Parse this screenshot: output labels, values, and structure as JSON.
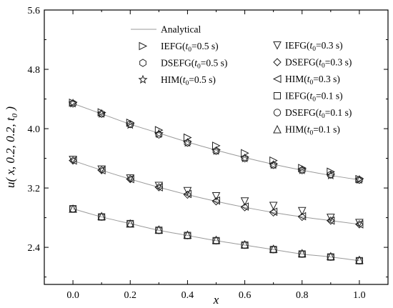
{
  "chart_data": {
    "type": "scatter",
    "xlabel": "x",
    "ylabel": "u( x, 0.2, 0.2, t0 )",
    "xlim": [
      -0.1,
      1.1
    ],
    "ylim": [
      1.9,
      5.6
    ],
    "xticks": [
      0.0,
      0.2,
      0.4,
      0.6,
      0.8,
      1.0
    ],
    "xtick_labels": [
      "0.0",
      "0.2",
      "0.4",
      "0.6",
      "0.8",
      "1.0"
    ],
    "yticks": [
      2.4,
      3.2,
      4.0,
      4.8,
      5.6
    ],
    "ytick_labels": [
      "2.4",
      "3.2",
      "4.0",
      "4.8",
      "5.6"
    ],
    "grid": false,
    "legend_position": "top-right",
    "x": [
      0.0,
      0.1,
      0.2,
      0.3,
      0.4,
      0.5,
      0.6,
      0.7,
      0.8,
      0.9,
      1.0
    ],
    "series": [
      {
        "name": "Analytical",
        "marker": "line",
        "values": [
          4.34,
          4.2,
          4.06,
          3.94,
          3.82,
          3.71,
          3.61,
          3.52,
          3.44,
          3.37,
          3.31
        ]
      },
      {
        "name": "IEFG(t0=0.5 s)",
        "label_main": "IEFG(",
        "label_sub": "0",
        "label_rest": "=0.5 s)",
        "marker": "triangle-right",
        "values": [
          4.35,
          4.22,
          4.08,
          3.98,
          3.88,
          3.77,
          3.67,
          3.57,
          3.47,
          3.42,
          3.32
        ]
      },
      {
        "name": "DSEFG(t0=0.5 s)",
        "label_main": "DSEFG(",
        "label_sub": "0",
        "label_rest": "=0.5 s)",
        "marker": "hexagon",
        "values": [
          4.34,
          4.2,
          4.06,
          3.92,
          3.81,
          3.7,
          3.6,
          3.51,
          3.44,
          3.38,
          3.31
        ]
      },
      {
        "name": "HIM(t0=0.5 s)",
        "label_main": "HIM(",
        "label_sub": "0",
        "label_rest": "=0.5 s)",
        "marker": "star",
        "values": [
          4.34,
          4.2,
          4.05,
          3.93,
          3.81,
          3.7,
          3.6,
          3.51,
          3.44,
          3.37,
          3.31
        ]
      },
      {
        "name": "IEFG(t0=0.3 s)",
        "label_main": "IEFG(",
        "label_sub": "0",
        "label_rest": "=0.3 s)",
        "marker": "triangle-down",
        "values": [
          3.58,
          3.45,
          3.33,
          3.23,
          3.16,
          3.09,
          3.02,
          2.96,
          2.89,
          2.8,
          2.73
        ]
      },
      {
        "name": "DSEFG(t0=0.3 s)",
        "label_main": "DSEFG(",
        "label_sub": "0",
        "label_rest": "=0.3 s)",
        "marker": "diamond",
        "values": [
          3.57,
          3.44,
          3.32,
          3.21,
          3.11,
          3.02,
          2.94,
          2.87,
          2.81,
          2.76,
          2.71
        ]
      },
      {
        "name": "HIM(t0=0.3 s)",
        "label_main": "HIM(",
        "label_sub": "0",
        "label_rest": "=0.3 s)",
        "marker": "triangle-left",
        "values": [
          3.57,
          3.44,
          3.32,
          3.21,
          3.12,
          3.03,
          2.95,
          2.88,
          2.82,
          2.76,
          2.71
        ]
      },
      {
        "name": "IEFG(t0=0.1 s)",
        "label_main": "IEFG(",
        "label_sub": "0",
        "label_rest": "=0.1 s)",
        "marker": "square",
        "values": [
          2.92,
          2.81,
          2.72,
          2.63,
          2.56,
          2.49,
          2.43,
          2.37,
          2.31,
          2.27,
          2.22
        ]
      },
      {
        "name": "DSEFG(t0=0.1 s)",
        "label_main": "DSEFG(",
        "label_sub": "0",
        "label_rest": "=0.1 s)",
        "marker": "circle",
        "values": [
          2.92,
          2.81,
          2.72,
          2.63,
          2.56,
          2.49,
          2.43,
          2.37,
          2.31,
          2.27,
          2.22
        ]
      },
      {
        "name": "HIM(t0=0.1 s)",
        "label_main": "HIM(",
        "label_sub": "0",
        "label_rest": "=0.1 s)",
        "marker": "triangle-up",
        "values": [
          2.92,
          2.82,
          2.72,
          2.64,
          2.57,
          2.5,
          2.44,
          2.38,
          2.32,
          2.28,
          2.23
        ]
      }
    ]
  }
}
